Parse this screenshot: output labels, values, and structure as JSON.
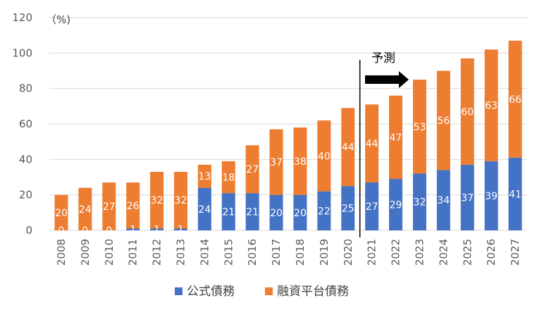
{
  "chart_data": {
    "type": "bar",
    "stacked": true,
    "unit_label": "（%)",
    "categories": [
      "2008",
      "2009",
      "2010",
      "2011",
      "2012",
      "2013",
      "2014",
      "2015",
      "2016",
      "2017",
      "2018",
      "2019",
      "2020",
      "2021",
      "2022",
      "2023",
      "2024",
      "2025",
      "2026",
      "2027"
    ],
    "series": [
      {
        "name": "公式債務",
        "color": "#4472c4",
        "values": [
          0,
          0,
          0,
          1,
          1,
          1,
          24,
          21,
          21,
          20,
          20,
          22,
          25,
          27,
          29,
          32,
          34,
          37,
          39,
          41
        ]
      },
      {
        "name": "融資平台債務",
        "color": "#ed7d31",
        "values": [
          20,
          24,
          27,
          26,
          32,
          32,
          13,
          18,
          27,
          37,
          38,
          40,
          44,
          44,
          47,
          53,
          56,
          60,
          63,
          66
        ]
      }
    ],
    "ylim": [
      0,
      120
    ],
    "yticks": [
      0,
      20,
      40,
      60,
      80,
      100,
      120
    ],
    "grid": true,
    "legend": "bottom",
    "annotation": {
      "text": "予測",
      "start_category": "2021"
    }
  }
}
